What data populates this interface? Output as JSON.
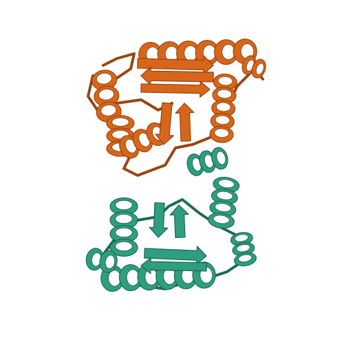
{
  "scene": {
    "background": "#ffffff",
    "subject": "protein-dimer-cartoon",
    "chains": [
      {
        "id": "chain-a",
        "color": "#d8661a",
        "shade": "#9a4510",
        "highlight": "#f0a060"
      },
      {
        "id": "chain-b",
        "color": "#2e9e80",
        "shade": "#1c6b55",
        "highlight": "#7dcdb5"
      }
    ]
  }
}
